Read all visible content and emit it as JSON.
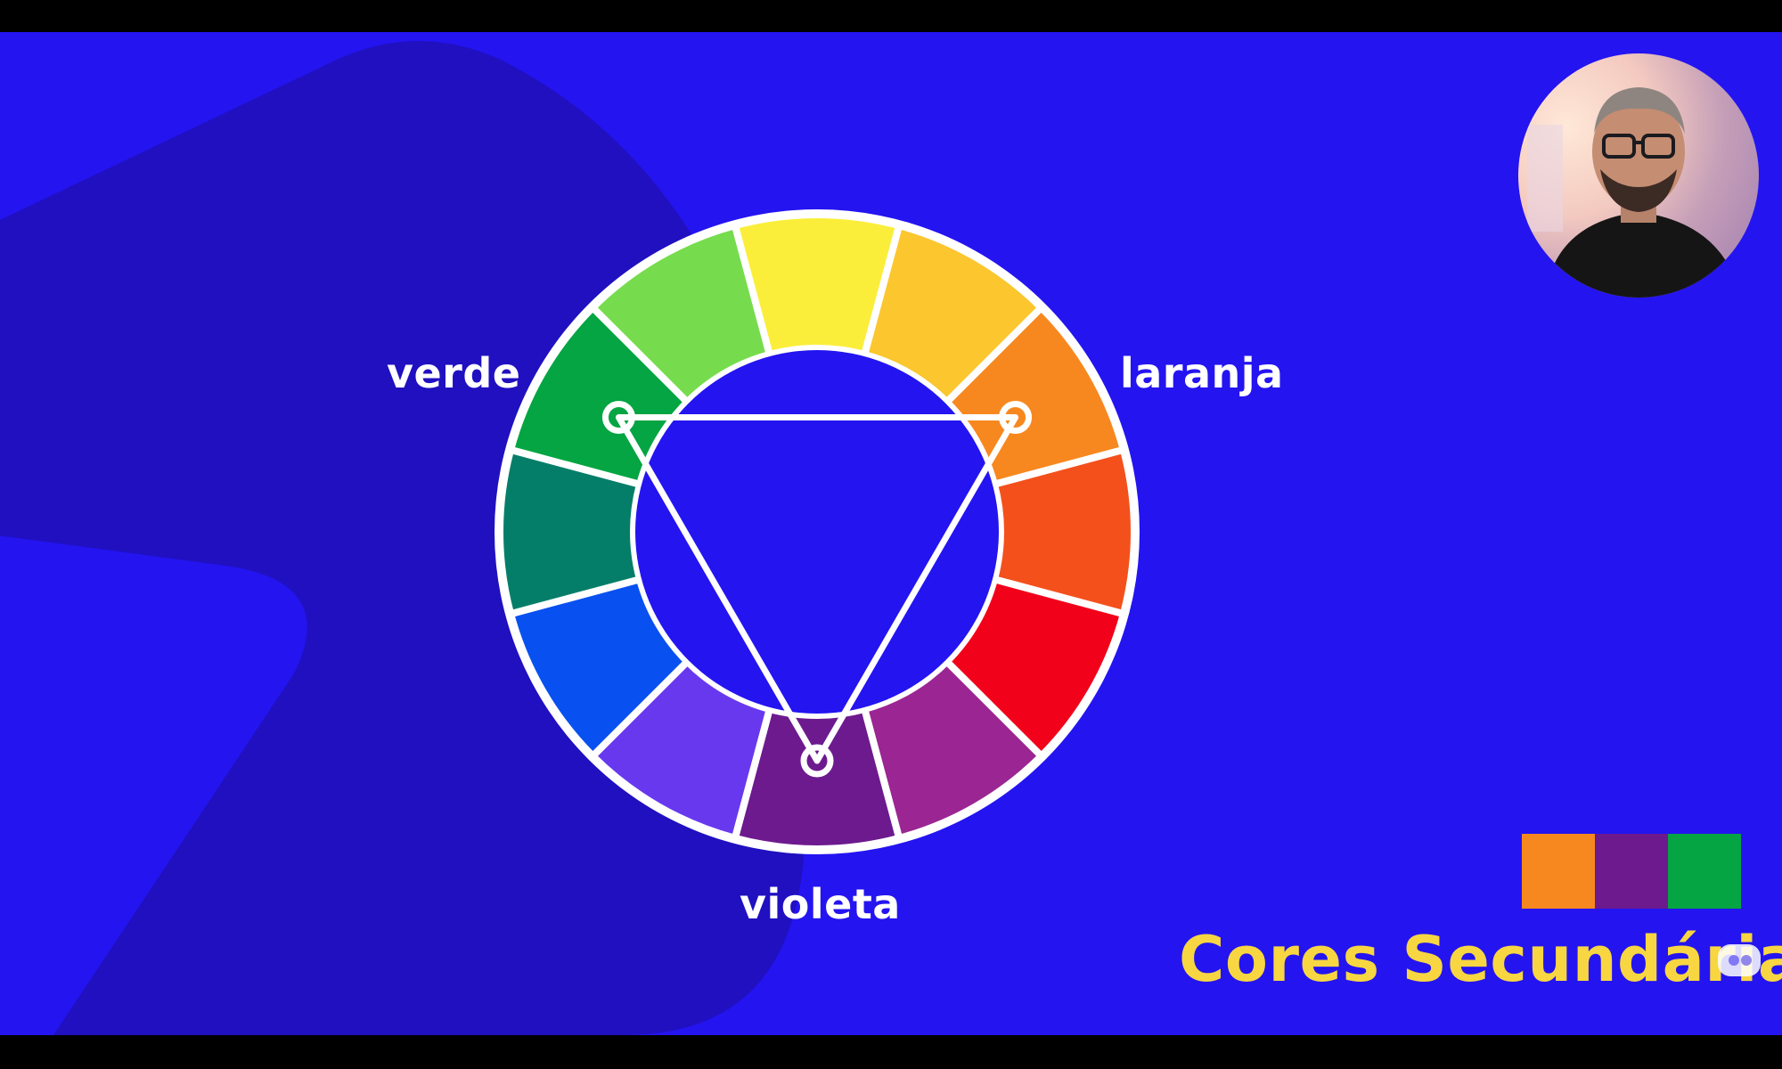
{
  "wheel": {
    "segments": [
      {
        "color": "#fbee3a"
      },
      {
        "color": "#fbc62e"
      },
      {
        "color": "#f7881f"
      },
      {
        "color": "#f4501c"
      },
      {
        "color": "#f2021a"
      },
      {
        "color": "#9b2593"
      },
      {
        "color": "#6d1a8e"
      },
      {
        "color": "#6838ef"
      },
      {
        "color": "#0950f0"
      },
      {
        "color": "#057e69"
      },
      {
        "color": "#04a542"
      },
      {
        "color": "#76dc4d"
      }
    ],
    "triangle_vertices": [
      "verde",
      "laranja",
      "violeta"
    ]
  },
  "labels": {
    "verde": "verde",
    "laranja": "laranja",
    "violeta": "violeta"
  },
  "palette": {
    "swatches": [
      {
        "name": "laranja",
        "color": "#f7881f"
      },
      {
        "name": "violeta",
        "color": "#6d1a8e"
      },
      {
        "name": "verde",
        "color": "#04a542"
      }
    ]
  },
  "title": "Cores Secundárias",
  "colors": {
    "background": "#2414f0",
    "background_shape": "#2010c0",
    "title": "#f7d641",
    "stroke": "#ffffff"
  },
  "webcam": {
    "icon": "presenter-webcam-icon"
  },
  "watermark": {
    "icon": "channel-watermark-icon"
  }
}
